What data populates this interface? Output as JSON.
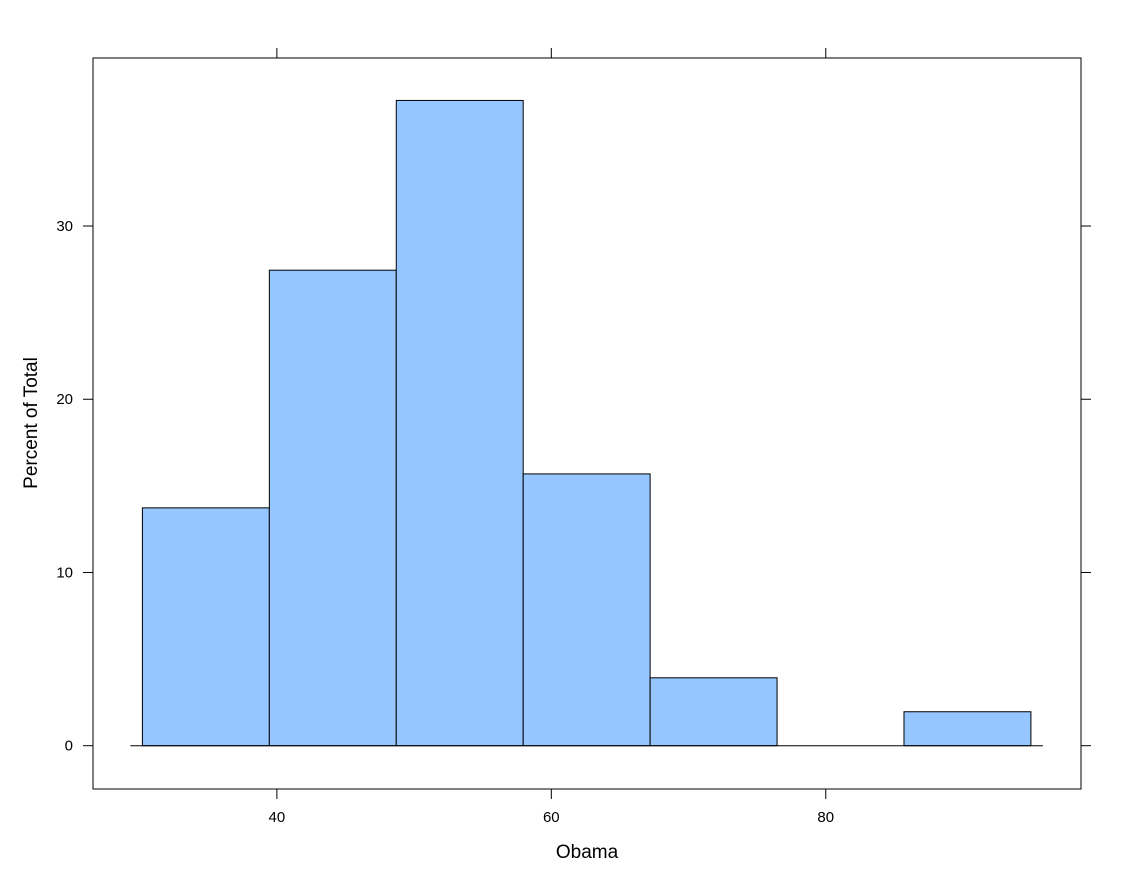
{
  "chart_data": {
    "type": "bar",
    "subtype": "histogram",
    "xlabel": "Obama",
    "ylabel": "Percent of Total",
    "bins": [
      {
        "start": 30.2,
        "end": 39.45,
        "value": 13.73
      },
      {
        "start": 39.45,
        "end": 48.7,
        "value": 27.45
      },
      {
        "start": 48.7,
        "end": 57.95,
        "value": 37.25
      },
      {
        "start": 57.95,
        "end": 67.2,
        "value": 15.69
      },
      {
        "start": 67.2,
        "end": 76.45,
        "value": 3.92
      },
      {
        "start": 76.45,
        "end": 85.7,
        "value": 0
      },
      {
        "start": 85.7,
        "end": 94.95,
        "value": 1.96
      }
    ],
    "xlim": [
      26.6,
      98.6
    ],
    "ylim": [
      -2.5,
      39.7
    ],
    "xticks": [
      40,
      60,
      80
    ],
    "yticks": [
      0,
      10,
      20,
      30
    ],
    "bar_color": "#96C6FF",
    "bar_edge_color": "#000000",
    "grid": false,
    "legend": "none"
  }
}
